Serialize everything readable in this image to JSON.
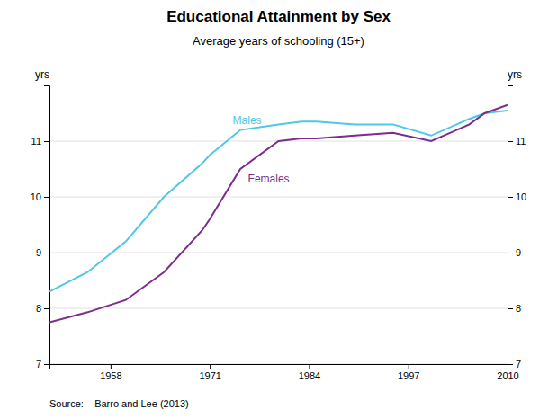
{
  "chart_data": {
    "type": "line",
    "title": "Educational Attainment by Sex",
    "subtitle": "Average years of schooling (15+)",
    "source": "Source:    Barro and Lee (2013)",
    "ylabel": "yrs",
    "y2label": "yrs",
    "x": [
      1950,
      1955,
      1960,
      1965,
      1970,
      1971,
      1975,
      1980,
      1983,
      1985,
      1990,
      1995,
      2000,
      2005,
      2007,
      2010
    ],
    "series": [
      {
        "color": "#4DC8E8",
        "values": [
          8.3,
          8.65,
          9.2,
          10.0,
          10.6,
          10.75,
          11.2,
          11.3,
          11.35,
          11.35,
          11.3,
          11.3,
          11.1,
          11.4,
          11.5,
          11.55
        ]
      },
      {
        "color": "#7B2D8B",
        "values": [
          7.75,
          7.93,
          8.15,
          8.65,
          9.4,
          9.6,
          10.5,
          11.0,
          11.05,
          11.05,
          11.1,
          11.15,
          11.0,
          11.3,
          11.5,
          11.65
        ]
      }
    ],
    "annotations": [
      {
        "text": "Males",
        "x": 1974,
        "y": 11.28,
        "color": "#4DC8E8"
      },
      {
        "text": "Females",
        "x": 1976,
        "y": 10.22,
        "color": "#7B2D8B"
      }
    ],
    "xlim": [
      1950,
      2010
    ],
    "xticks": [
      1958,
      1971,
      1984,
      1997,
      2010
    ],
    "ylim": [
      7,
      12
    ],
    "yticks": [
      7,
      8,
      9,
      10,
      11
    ],
    "y2lim": [
      7,
      12
    ],
    "y2ticks": [
      7,
      8,
      9,
      10,
      11
    ],
    "grid": true
  }
}
